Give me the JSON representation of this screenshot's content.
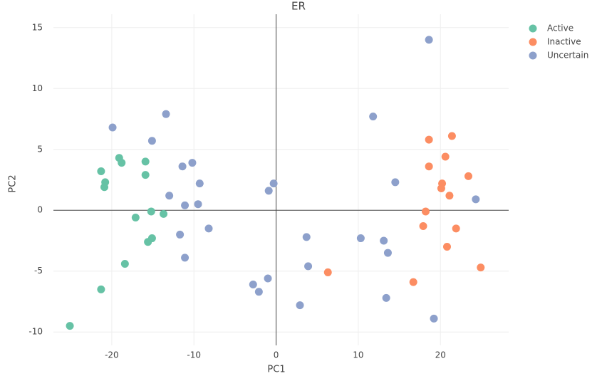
{
  "chart_data": {
    "type": "scatter",
    "title": "ER",
    "x_label": "PC1",
    "y_label": "PC2",
    "xlim": [
      -27.1,
      28.3
    ],
    "ylim": [
      -11.1,
      16.1
    ],
    "xticks": [
      -20,
      -10,
      0,
      10,
      20
    ],
    "yticks": [
      -10,
      -5,
      0,
      5,
      10,
      15
    ],
    "grid": true,
    "legend": "top-right",
    "series": [
      {
        "name": "Active",
        "color": "#66c2a5",
        "x": [
          -25.1,
          -21.3,
          -21.3,
          -20.8,
          -20.9,
          -19.1,
          -18.8,
          -18.4,
          -15.9,
          -15.9,
          -17.1,
          -15.2,
          -13.7,
          -15.1,
          -15.6
        ],
        "values": [
          -9.5,
          -6.5,
          3.2,
          2.3,
          1.9,
          4.3,
          3.9,
          -4.4,
          4.0,
          2.9,
          -0.6,
          -0.1,
          -0.3,
          -2.3,
          -2.6
        ]
      },
      {
        "name": "Inactive",
        "color": "#fc8d62",
        "x": [
          18.6,
          21.4,
          20.6,
          18.6,
          23.4,
          20.2,
          20.1,
          21.1,
          18.2,
          17.9,
          21.9,
          20.8,
          24.9,
          6.3,
          16.7
        ],
        "values": [
          5.8,
          6.1,
          4.4,
          3.6,
          2.8,
          2.2,
          1.8,
          1.2,
          -0.1,
          -1.3,
          -1.5,
          -3.0,
          -4.7,
          -5.1,
          -5.9
        ]
      },
      {
        "name": "Uncertain",
        "color": "#8da0cb",
        "x": [
          18.6,
          11.8,
          -13.4,
          -19.9,
          -15.1,
          -10.2,
          -11.4,
          -9.3,
          -13.0,
          -11.1,
          -9.5,
          -8.2,
          -11.7,
          -11.1,
          -0.3,
          -0.9,
          14.5,
          24.3,
          3.7,
          10.3,
          13.1,
          13.6,
          3.9,
          -1.0,
          -2.8,
          -2.1,
          13.4,
          2.9,
          19.2
        ],
        "values": [
          14.0,
          7.7,
          7.9,
          6.8,
          5.7,
          3.9,
          3.6,
          2.2,
          1.2,
          0.4,
          0.5,
          -1.5,
          -2.0,
          -3.9,
          2.2,
          1.6,
          2.3,
          0.9,
          -2.2,
          -2.3,
          -2.5,
          -3.5,
          -4.6,
          -5.6,
          -6.1,
          -6.7,
          -7.2,
          -7.8,
          -8.9
        ]
      }
    ]
  }
}
